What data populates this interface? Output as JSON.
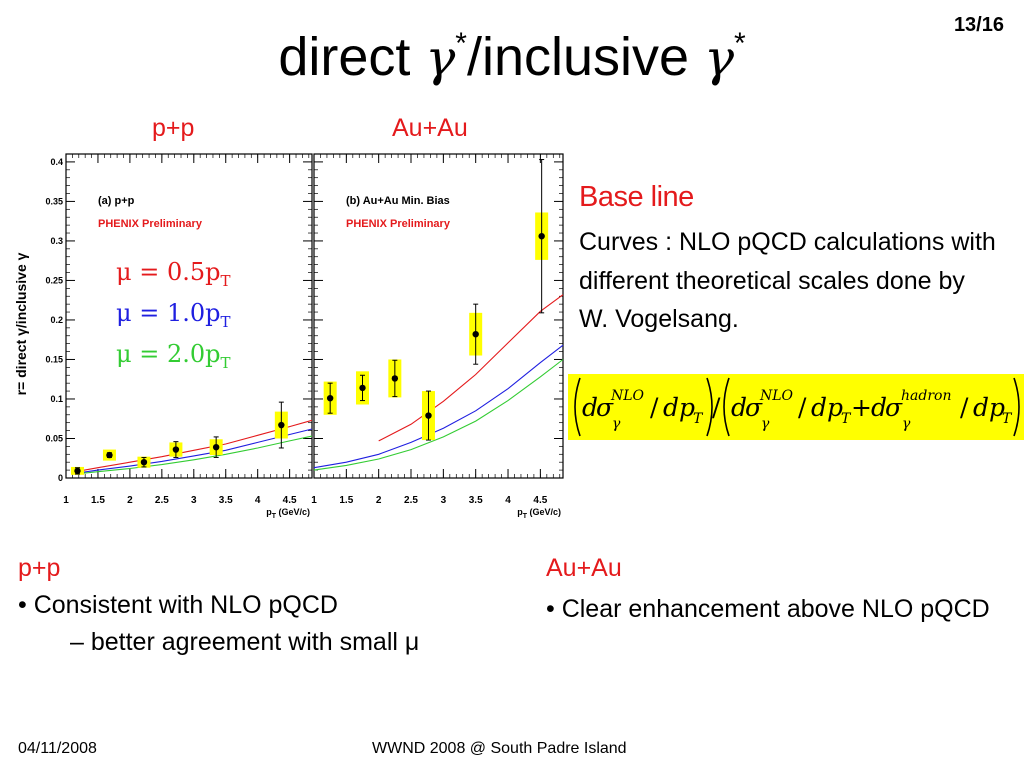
{
  "slide": {
    "page_number": "13/16",
    "title": {
      "pre": "direct ",
      "gamma": "γ",
      "star": "*",
      "mid": "/inclusive ",
      "gamma2": "γ",
      "star2": "*"
    },
    "panel_labels": {
      "pp": "p+p",
      "auau": "Au+Au"
    },
    "baseline": {
      "title": "Base line",
      "text": "Curves : NLO pQCD calculations with different theoretical scales done by W. Vogelsang."
    },
    "formula": {
      "d": "d",
      "sigma": "σ",
      "gamma": "γ",
      "nlo": "NLO",
      "hadron": "hadron",
      "slash": "/",
      "dp": "dp",
      "T": "T",
      "plus": "+"
    },
    "pp_section": {
      "title": "p+p",
      "bullet1": "• Consistent with NLO pQCD",
      "bullet2": "– better agreement with small μ"
    },
    "auau_section": {
      "title": "Au+Au",
      "bullet1": "• Clear enhancement above NLO pQCD"
    },
    "footer": {
      "date": "04/11/2008",
      "conference": "WWND 2008 @ South Padre Island"
    }
  },
  "chart_data": [
    {
      "type": "scatter",
      "panel_label": "(a) p+p",
      "preliminary": "PHENIX Preliminary",
      "ylabel": "r= direct γ/inclusive γ",
      "xlabel_main": "p",
      "xlabel_sub": "T",
      "xlabel_units": "(GeV/c)",
      "xlim": [
        1,
        4.85
      ],
      "ylim": [
        0,
        0.41
      ],
      "x_ticks": [
        1,
        1.5,
        2,
        2.5,
        3,
        3.5,
        4,
        4.5
      ],
      "x_tick_labels": [
        "1",
        "1.5",
        "2",
        "2.5",
        "3",
        "3.5",
        "4",
        "4.5"
      ],
      "y_ticks": [
        0,
        0.05,
        0.1,
        0.15,
        0.2,
        0.25,
        0.3,
        0.35,
        0.4
      ],
      "y_tick_labels": [
        "0",
        "0.05",
        "0.1",
        "0.15",
        "0.2",
        "0.25",
        "0.3",
        "0.35",
        "0.4"
      ],
      "legend": [
        {
          "mu": "μ",
          "eq": " = ",
          "val": "0.5p",
          "sub": "T",
          "color": "#e41a1c"
        },
        {
          "mu": "μ",
          "eq": " = ",
          "val": "1.0p",
          "sub": "T",
          "color": "#1f1fe0"
        },
        {
          "mu": "μ",
          "eq": " = ",
          "val": "2.0p",
          "sub": "T",
          "color": "#33cc33"
        }
      ],
      "points": [
        {
          "x": 1.18,
          "y": 0.009,
          "err": 0.004,
          "sys": 0.005
        },
        {
          "x": 1.68,
          "y": 0.029,
          "err": 0.003,
          "sys": 0.007
        },
        {
          "x": 2.22,
          "y": 0.02,
          "err": 0.006,
          "sys": 0.007
        },
        {
          "x": 2.72,
          "y": 0.036,
          "err": 0.01,
          "sys": 0.009
        },
        {
          "x": 3.35,
          "y": 0.039,
          "err": 0.013,
          "sys": 0.01
        },
        {
          "x": 4.37,
          "y": 0.067,
          "err": 0.029,
          "sys": 0.017
        }
      ],
      "series": [
        {
          "color": "#e41a1c",
          "x": [
            1.15,
            1.5,
            2,
            2.5,
            3,
            3.5,
            4,
            4.5,
            4.85
          ],
          "y": [
            0.008,
            0.013,
            0.02,
            0.027,
            0.035,
            0.043,
            0.054,
            0.065,
            0.073
          ]
        },
        {
          "color": "#1f1fe0",
          "x": [
            1.15,
            1.5,
            2,
            2.5,
            3,
            3.5,
            4,
            4.5,
            4.85
          ],
          "y": [
            0.006,
            0.01,
            0.015,
            0.021,
            0.028,
            0.035,
            0.045,
            0.055,
            0.062
          ]
        },
        {
          "color": "#33cc33",
          "x": [
            1.15,
            1.5,
            2,
            2.5,
            3,
            3.5,
            4,
            4.5,
            4.85
          ],
          "y": [
            0.005,
            0.008,
            0.012,
            0.017,
            0.023,
            0.03,
            0.038,
            0.047,
            0.053
          ]
        }
      ]
    },
    {
      "type": "scatter",
      "panel_label": "(b) Au+Au Min. Bias",
      "preliminary": "PHENIX Preliminary",
      "xlabel_main": "p",
      "xlabel_sub": "T",
      "xlabel_units": "(GeV/c)",
      "xlim": [
        1,
        4.85
      ],
      "ylim": [
        0,
        0.41
      ],
      "x_ticks": [
        1,
        1.5,
        2,
        2.5,
        3,
        3.5,
        4,
        4.5
      ],
      "x_tick_labels": [
        "1",
        "1.5",
        "2",
        "2.5",
        "3",
        "3.5",
        "4",
        "4.5"
      ],
      "points": [
        {
          "x": 1.25,
          "y": 0.101,
          "err": 0.019,
          "sys": 0.021
        },
        {
          "x": 1.75,
          "y": 0.114,
          "err": 0.016,
          "sys": 0.021
        },
        {
          "x": 2.25,
          "y": 0.126,
          "err": 0.023,
          "sys": 0.024
        },
        {
          "x": 2.77,
          "y": 0.079,
          "err": 0.031,
          "sys": 0.031
        },
        {
          "x": 3.5,
          "y": 0.182,
          "err": 0.038,
          "sys": 0.027
        },
        {
          "x": 4.52,
          "y": 0.306,
          "err": 0.097,
          "sys": 0.03
        }
      ],
      "series": [
        {
          "color": "#e41a1c",
          "x": [
            2,
            2.5,
            3,
            3.5,
            4,
            4.5,
            4.85
          ],
          "y": [
            0.047,
            0.068,
            0.097,
            0.131,
            0.171,
            0.211,
            0.232
          ]
        },
        {
          "color": "#1f1fe0",
          "x": [
            1,
            1.5,
            2,
            2.5,
            3,
            3.5,
            4,
            4.5,
            4.85
          ],
          "y": [
            0.013,
            0.02,
            0.03,
            0.045,
            0.063,
            0.085,
            0.113,
            0.146,
            0.168
          ]
        },
        {
          "color": "#33cc33",
          "x": [
            1,
            1.5,
            2,
            2.5,
            3,
            3.5,
            4,
            4.5,
            4.85
          ],
          "y": [
            0.01,
            0.016,
            0.024,
            0.036,
            0.052,
            0.072,
            0.098,
            0.128,
            0.15
          ]
        }
      ]
    }
  ]
}
